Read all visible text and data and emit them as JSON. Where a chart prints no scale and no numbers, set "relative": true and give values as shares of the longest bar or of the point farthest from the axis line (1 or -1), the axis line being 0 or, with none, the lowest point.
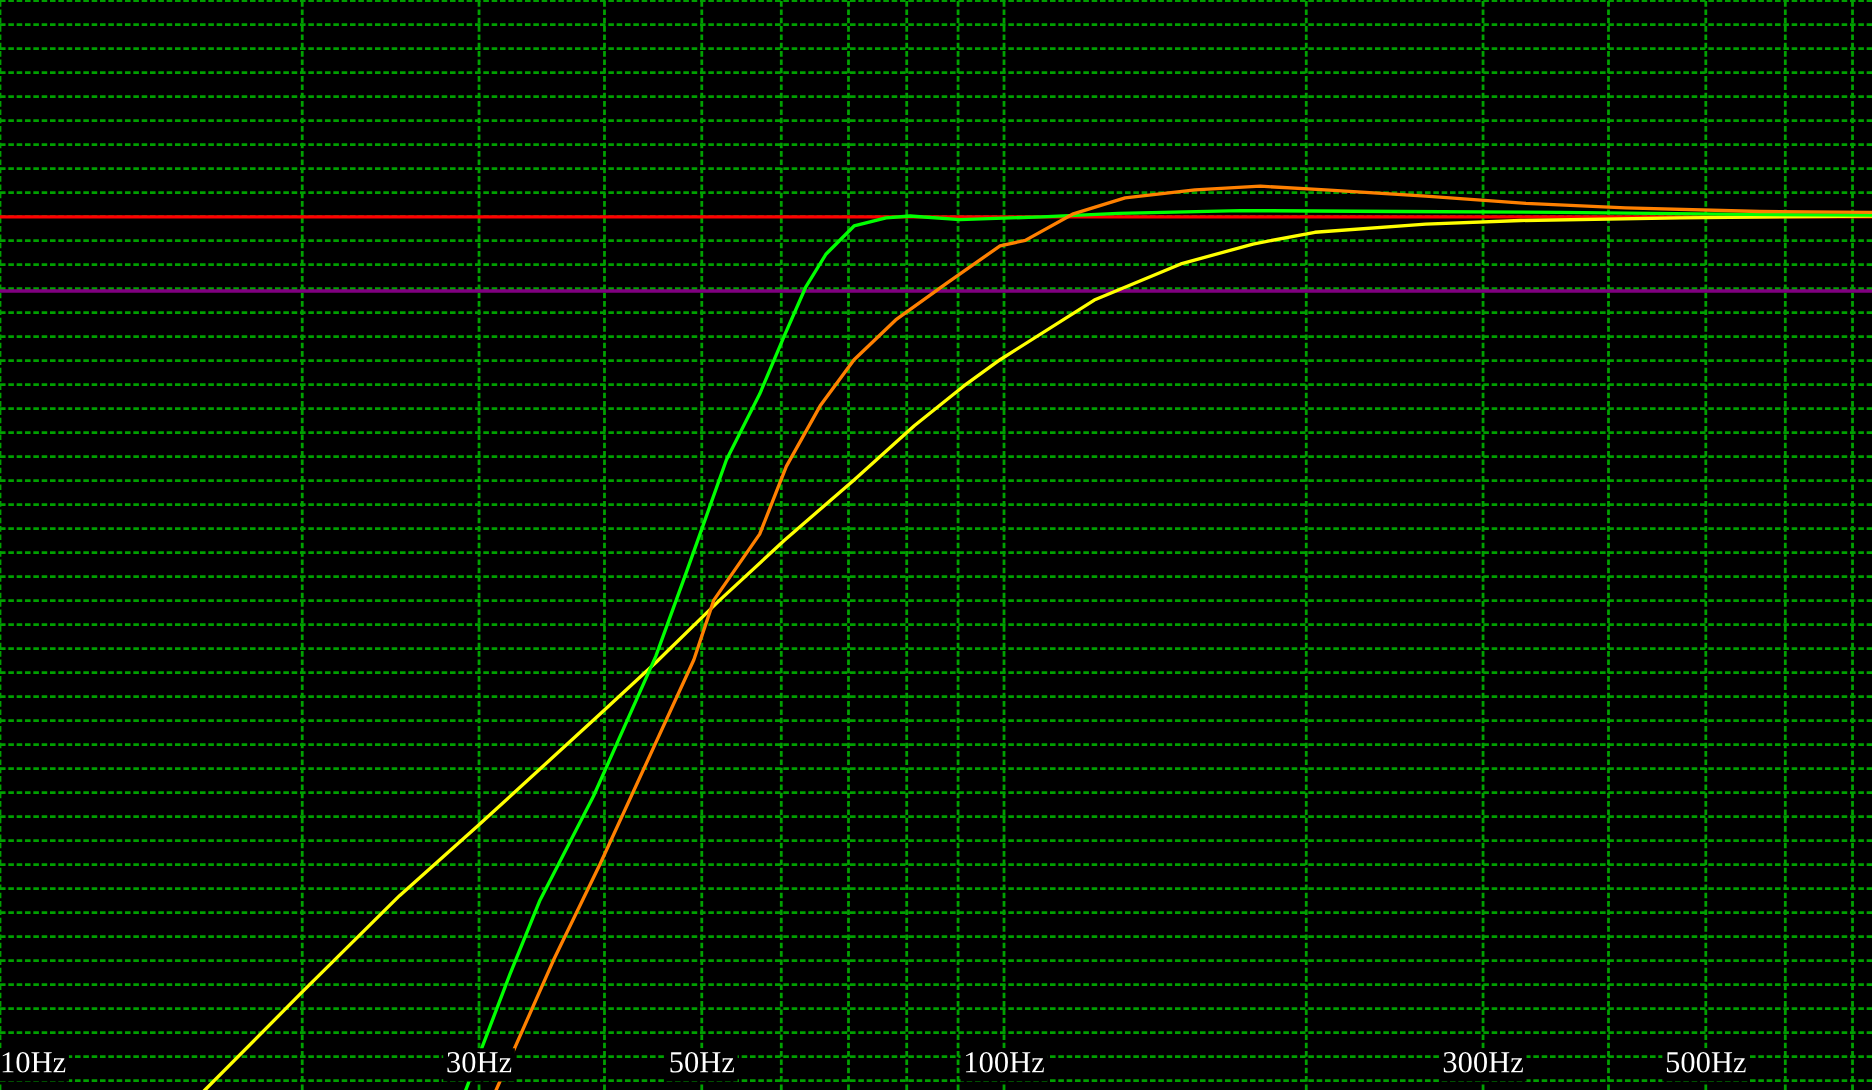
{
  "chart_data": {
    "type": "line",
    "relative": true,
    "log": "x",
    "grid": true,
    "legend": false,
    "marker": "none",
    "line_style": "solid",
    "xlim": [
      10,
      732
    ],
    "xticks": [
      {
        "value": 10,
        "label": "10Hz"
      },
      {
        "value": 20,
        "label": null
      },
      {
        "value": 30,
        "label": "30Hz"
      },
      {
        "value": 40,
        "label": null
      },
      {
        "value": 50,
        "label": "50Hz"
      },
      {
        "value": 60,
        "label": null
      },
      {
        "value": 70,
        "label": null
      },
      {
        "value": 80,
        "label": null
      },
      {
        "value": 90,
        "label": null
      },
      {
        "value": 100,
        "label": "100Hz"
      },
      {
        "value": 200,
        "label": null
      },
      {
        "value": 300,
        "label": "300Hz"
      },
      {
        "value": 400,
        "label": null
      },
      {
        "value": 500,
        "label": "500Hz"
      },
      {
        "value": 600,
        "label": null
      },
      {
        "value": 700,
        "label": null
      }
    ],
    "ref_lines": [
      {
        "axis": "y",
        "value": 0.966,
        "color": "#ff0000"
      },
      {
        "axis": "y",
        "value": 0.884,
        "color": "#800080"
      }
    ],
    "series": [
      {
        "color": "#ffff00",
        "x": [
          16.0,
          19.9,
          25.0,
          29.9,
          39.6,
          45.0,
          52.1,
          60.4,
          70.9,
          81.4,
          91.2,
          99.1,
          123,
          150,
          177,
          204,
          263,
          327,
          471,
          732
        ],
        "values": [
          0,
          0.106,
          0.215,
          0.292,
          0.416,
          0.473,
          0.542,
          0.608,
          0.675,
          0.735,
          0.779,
          0.808,
          0.874,
          0.914,
          0.936,
          0.949,
          0.958,
          0.962,
          0.965,
          0.967
        ]
      },
      {
        "color": "#00ff00",
        "x": [
          29.1,
          32.2,
          34.5,
          39.0,
          45.0,
          48.2,
          52.9,
          57.1,
          60.4,
          63.5,
          66.5,
          70.9,
          76.3,
          80.6,
          90.4,
          109,
          130,
          172,
          248,
          358,
          517,
          732
        ],
        "values": [
          0,
          0.128,
          0.21,
          0.325,
          0.48,
          0.571,
          0.697,
          0.77,
          0.834,
          0.889,
          0.925,
          0.956,
          0.965,
          0.967,
          0.963,
          0.966,
          0.97,
          0.973,
          0.972,
          0.971,
          0.969,
          0.968
        ]
      },
      {
        "color": "#ff8000",
        "x": [
          31.2,
          35.6,
          39.6,
          49.1,
          51.4,
          57.1,
          60.7,
          65.6,
          70.9,
          78.0,
          87.5,
          99.1,
          105,
          117,
          132,
          155,
          180,
          209,
          263,
          331,
          416,
          566,
          732
        ],
        "values": [
          0,
          0.144,
          0.25,
          0.476,
          0.542,
          0.615,
          0.69,
          0.757,
          0.808,
          0.852,
          0.892,
          0.934,
          0.94,
          0.969,
          0.987,
          0.996,
          1.0,
          0.996,
          0.989,
          0.981,
          0.976,
          0.972,
          0.971
        ]
      }
    ]
  }
}
